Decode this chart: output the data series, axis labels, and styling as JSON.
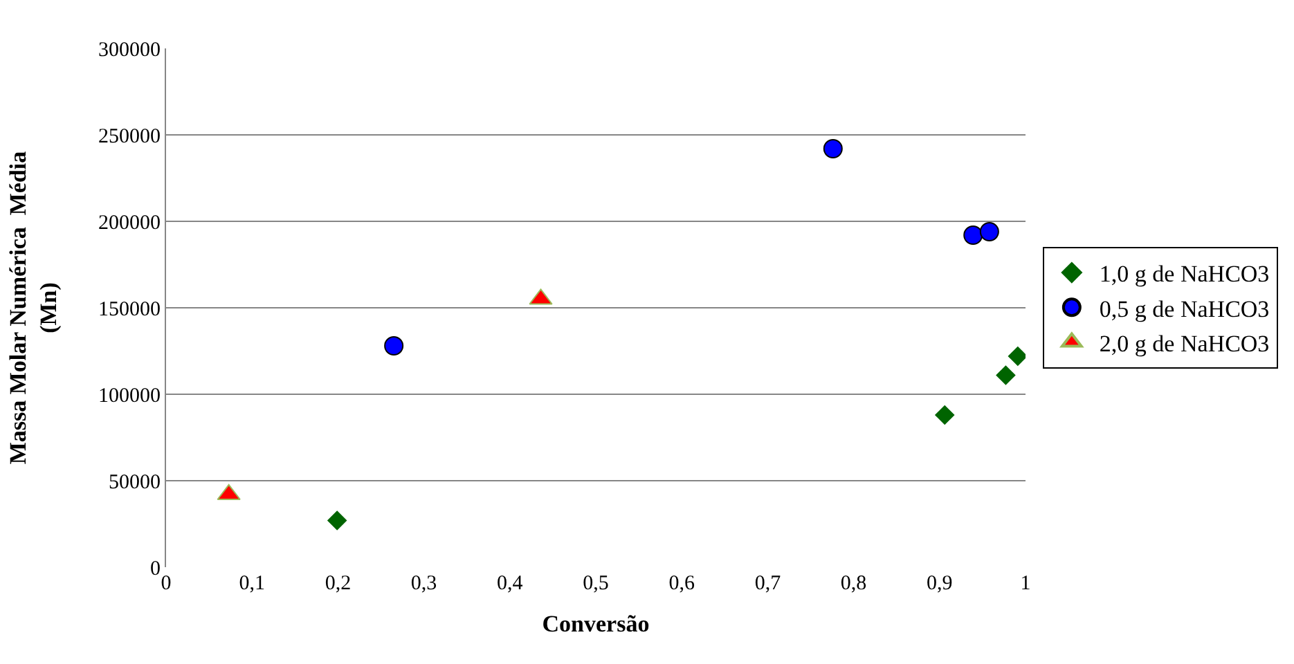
{
  "chart_data": {
    "type": "scatter",
    "xlabel": "Conversão",
    "ylabel": "Massa Molar Numérica  Média\n(Mn)",
    "xlim": [
      0,
      1
    ],
    "xticks": [
      {
        "value": 0,
        "label": "0"
      },
      {
        "value": 0.1,
        "label": "0,1"
      },
      {
        "value": 0.2,
        "label": "0,2"
      },
      {
        "value": 0.3,
        "label": "0,3"
      },
      {
        "value": 0.4,
        "label": "0,4"
      },
      {
        "value": 0.5,
        "label": "0,5"
      },
      {
        "value": 0.6,
        "label": "0,6"
      },
      {
        "value": 0.7,
        "label": "0,7"
      },
      {
        "value": 0.8,
        "label": "0,8"
      },
      {
        "value": 0.9,
        "label": "0,9"
      },
      {
        "value": 1,
        "label": "1"
      }
    ],
    "ylim": [
      0,
      300000
    ],
    "yticks": [
      0,
      50000,
      100000,
      150000,
      200000,
      250000,
      300000
    ],
    "grid": "y",
    "legend": "right",
    "series": [
      {
        "name": "1,0 g de NaHCO3",
        "color": "#006400",
        "marker": "diamond",
        "x": [
          0.199,
          0.906,
          0.977,
          0.991
        ],
        "values": [
          27000,
          88000,
          111000,
          122000
        ]
      },
      {
        "name": "0,5 g de NaHCO3",
        "color": "#0000ff",
        "marker": "circle",
        "x": [
          0.265,
          0.776,
          0.939,
          0.958
        ],
        "values": [
          128000,
          242000,
          192000,
          194000
        ]
      },
      {
        "name": "2,0 g de NaHCO3",
        "color": "#ff0000",
        "marker": "triangle",
        "x": [
          0.073,
          0.436
        ],
        "values": [
          42000,
          155000
        ]
      }
    ]
  }
}
